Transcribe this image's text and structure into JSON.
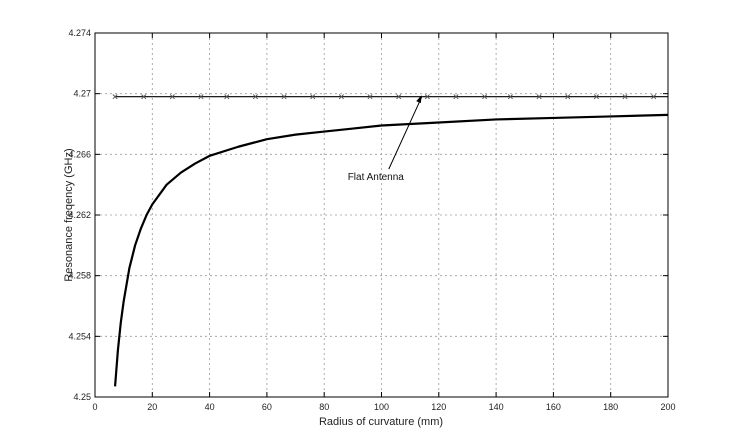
{
  "chart_data": {
    "type": "line",
    "title": "",
    "xlabel": "Radius of curvature (mm)",
    "ylabel": "Resonance freqency (GHz)",
    "xlim": [
      0,
      200
    ],
    "ylim": [
      4.25,
      4.274
    ],
    "x_ticks": [
      0,
      20,
      40,
      60,
      80,
      100,
      120,
      140,
      160,
      180,
      200
    ],
    "y_ticks": [
      4.25,
      4.254,
      4.258,
      4.262,
      4.266,
      4.27,
      4.274
    ],
    "grid": true,
    "legend": "none",
    "series": [
      {
        "style": "solid-thick",
        "color": "#000000",
        "x": [
          7,
          8,
          9,
          10,
          12,
          14,
          16,
          18,
          20,
          25,
          30,
          35,
          40,
          50,
          60,
          70,
          80,
          90,
          100,
          120,
          140,
          160,
          180,
          200
        ],
        "y": [
          4.2507,
          4.2531,
          4.2549,
          4.2563,
          4.2585,
          4.26,
          4.2611,
          4.262,
          4.2627,
          4.264,
          4.2648,
          4.2654,
          4.2659,
          4.2665,
          4.267,
          4.2673,
          4.2675,
          4.2677,
          4.2679,
          4.2681,
          4.2683,
          4.2684,
          4.2685,
          4.2686
        ]
      },
      {
        "style": "line-with-x-markers",
        "color": "#000000",
        "x": [
          7,
          17,
          27,
          37,
          46,
          56,
          66,
          76,
          86,
          96,
          106,
          116,
          126,
          136,
          145,
          155,
          165,
          175,
          185,
          195,
          200
        ],
        "y": [
          4.2698,
          4.2698,
          4.2698,
          4.2698,
          4.2698,
          4.2698,
          4.2698,
          4.2698,
          4.2698,
          4.2698,
          4.2698,
          4.2698,
          4.2698,
          4.2698,
          4.2698,
          4.2698,
          4.2698,
          4.2698,
          4.2698,
          4.2698,
          4.2698
        ]
      }
    ],
    "annotations": [
      {
        "text": "Flat Antenna",
        "x": 98,
        "y": 4.2643,
        "arrow_to": [
          114,
          4.2699
        ]
      }
    ]
  }
}
